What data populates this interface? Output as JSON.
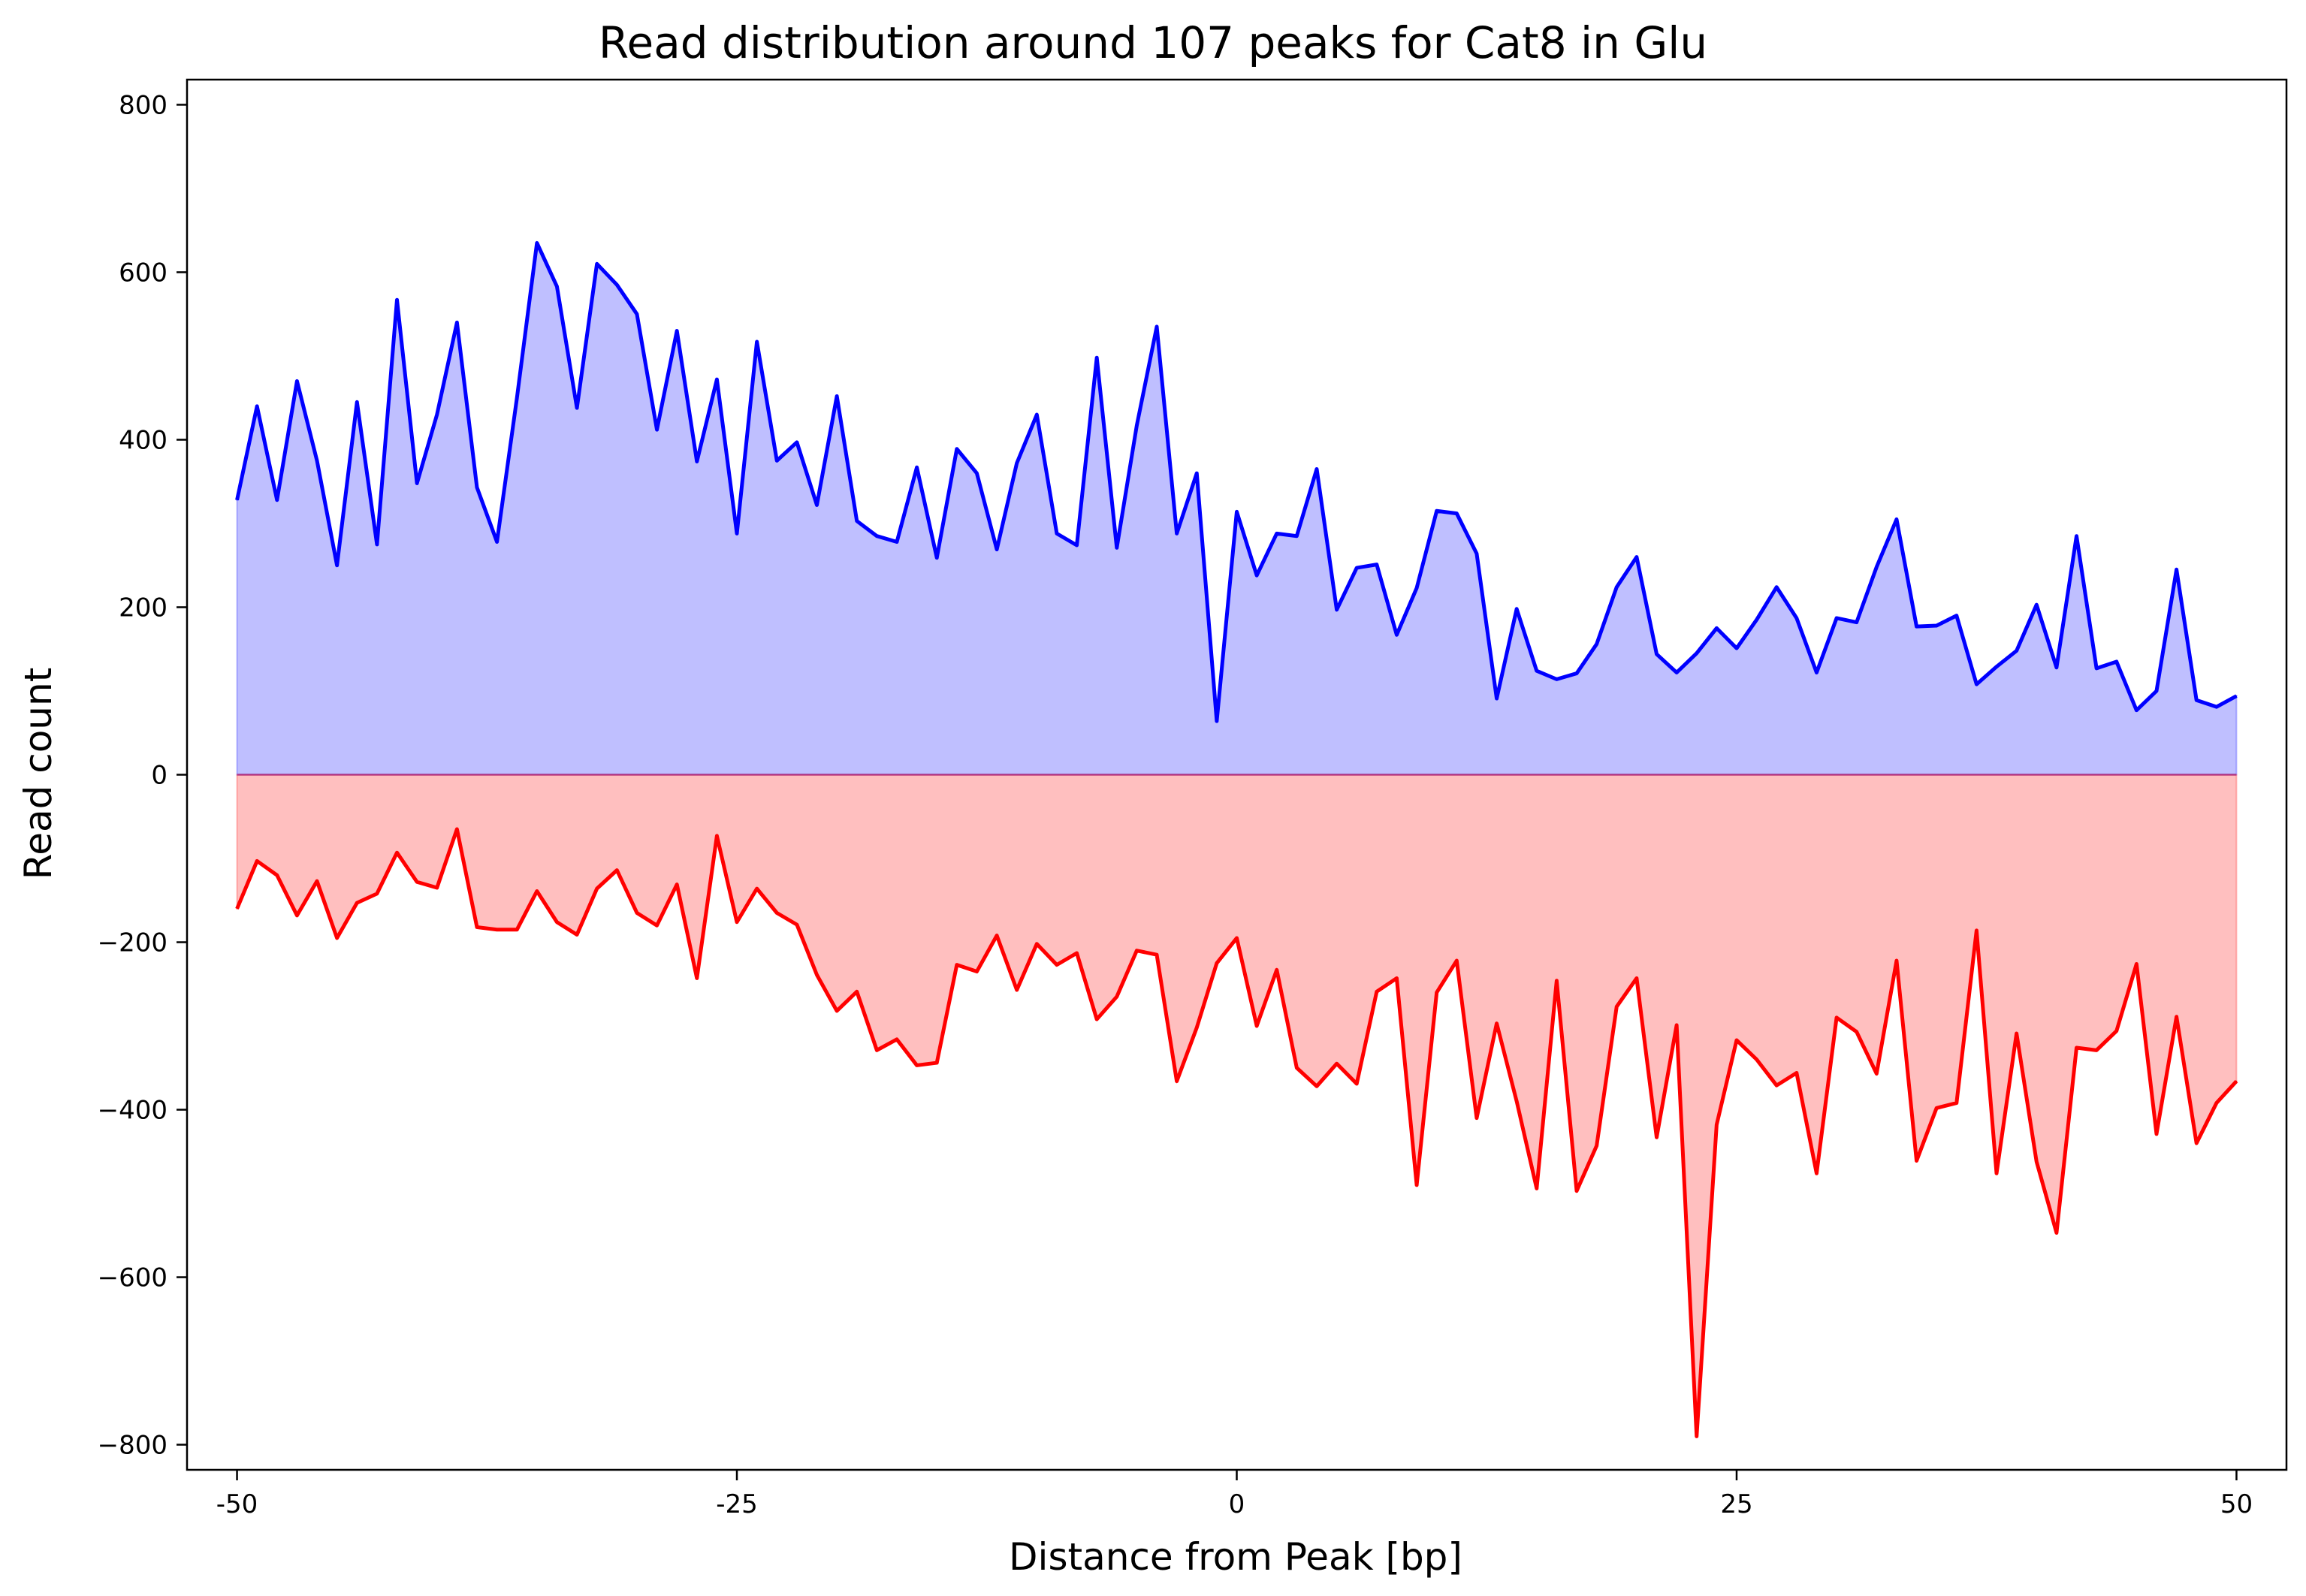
{
  "chart_data": {
    "type": "area",
    "title": "Read distribution around 107 peaks for Cat8 in Glu",
    "xlabel": "Distance from Peak [bp]",
    "ylabel": "Read count",
    "xlim": [
      -52.5,
      52.5
    ],
    "ylim": [
      -830,
      830
    ],
    "xticks": [
      -50,
      -25,
      0,
      25,
      50
    ],
    "xtick_labels": [
      "-50",
      "-25",
      "0",
      "25",
      "50"
    ],
    "yticks": [
      -800,
      -600,
      -400,
      -200,
      0,
      200,
      400,
      600,
      800
    ],
    "ytick_labels": [
      "−800",
      "−600",
      "−400",
      "−200",
      "0",
      "200",
      "400",
      "600",
      "800"
    ],
    "grid": false,
    "x": [
      -50,
      -49,
      -48,
      -47,
      -46,
      -45,
      -44,
      -43,
      -42,
      -41,
      -40,
      -39,
      -38,
      -37,
      -36,
      -35,
      -34,
      -33,
      -32,
      -31,
      -30,
      -29,
      -28,
      -27,
      -26,
      -25,
      -24,
      -23,
      -22,
      -21,
      -20,
      -19,
      -18,
      -17,
      -16,
      -15,
      -14,
      -13,
      -12,
      -11,
      -10,
      -9,
      -8,
      -7,
      -6,
      -5,
      -4,
      -3,
      -2,
      -1,
      0,
      1,
      2,
      3,
      4,
      5,
      6,
      7,
      8,
      9,
      10,
      11,
      12,
      13,
      14,
      15,
      16,
      17,
      18,
      19,
      20,
      21,
      22,
      23,
      24,
      25,
      26,
      27,
      28,
      29,
      30,
      31,
      32,
      33,
      34,
      35,
      36,
      37,
      38,
      39,
      40,
      41,
      42,
      43,
      44,
      45,
      46,
      47,
      48,
      49,
      50
    ],
    "series": [
      {
        "color": "#0000ff",
        "fill": "#bfbfff",
        "values": [
          328,
          440,
          328,
          470,
          375,
          250,
          445,
          275,
          567,
          348,
          430,
          540,
          343,
          278,
          450,
          635,
          583,
          438,
          610,
          585,
          550,
          412,
          530,
          374,
          472,
          288,
          517,
          375,
          397,
          322,
          452,
          303,
          285,
          278,
          367,
          259,
          389,
          360,
          269,
          372,
          430,
          288,
          274,
          498,
          271,
          417,
          535,
          288,
          360,
          64,
          314,
          238,
          288,
          285,
          365,
          197,
          247,
          251,
          167,
          223,
          315,
          312,
          264,
          91,
          198,
          124,
          114,
          121,
          156,
          224,
          260,
          144,
          122,
          145,
          175,
          151,
          185,
          224,
          187,
          122,
          187,
          182,
          248,
          305,
          177,
          178,
          190,
          108,
          129,
          148,
          203,
          128,
          285,
          127,
          135,
          77,
          100,
          245,
          89,
          81,
          94
        ]
      },
      {
        "color": "#ff0000",
        "fill": "#ffbfbf",
        "values": [
          -160,
          -103,
          -120,
          -168,
          -127,
          -195,
          -153,
          -142,
          -93,
          -128,
          -135,
          -65,
          -182,
          -185,
          -185,
          -139,
          -176,
          -191,
          -136,
          -114,
          -165,
          -180,
          -131,
          -243,
          -73,
          -176,
          -136,
          -165,
          -179,
          -239,
          -282,
          -259,
          -329,
          -316,
          -347,
          -344,
          -227,
          -235,
          -192,
          -257,
          -202,
          -227,
          -213,
          -292,
          -265,
          -210,
          -215,
          -366,
          -302,
          -225,
          -195,
          -300,
          -233,
          -350,
          -372,
          -345,
          -369,
          -259,
          -243,
          -490,
          -260,
          -222,
          -410,
          -297,
          -390,
          -494,
          -246,
          -497,
          -443,
          -277,
          -243,
          -433,
          -299,
          -790,
          -418,
          -317,
          -340,
          -371,
          -356,
          -476,
          -290,
          -307,
          -357,
          -222,
          -461,
          -398,
          -392,
          -186,
          -476,
          -309,
          -462,
          -547,
          -326,
          -329,
          -306,
          -226,
          -429,
          -289,
          -440,
          -392,
          -366
        ]
      }
    ]
  }
}
